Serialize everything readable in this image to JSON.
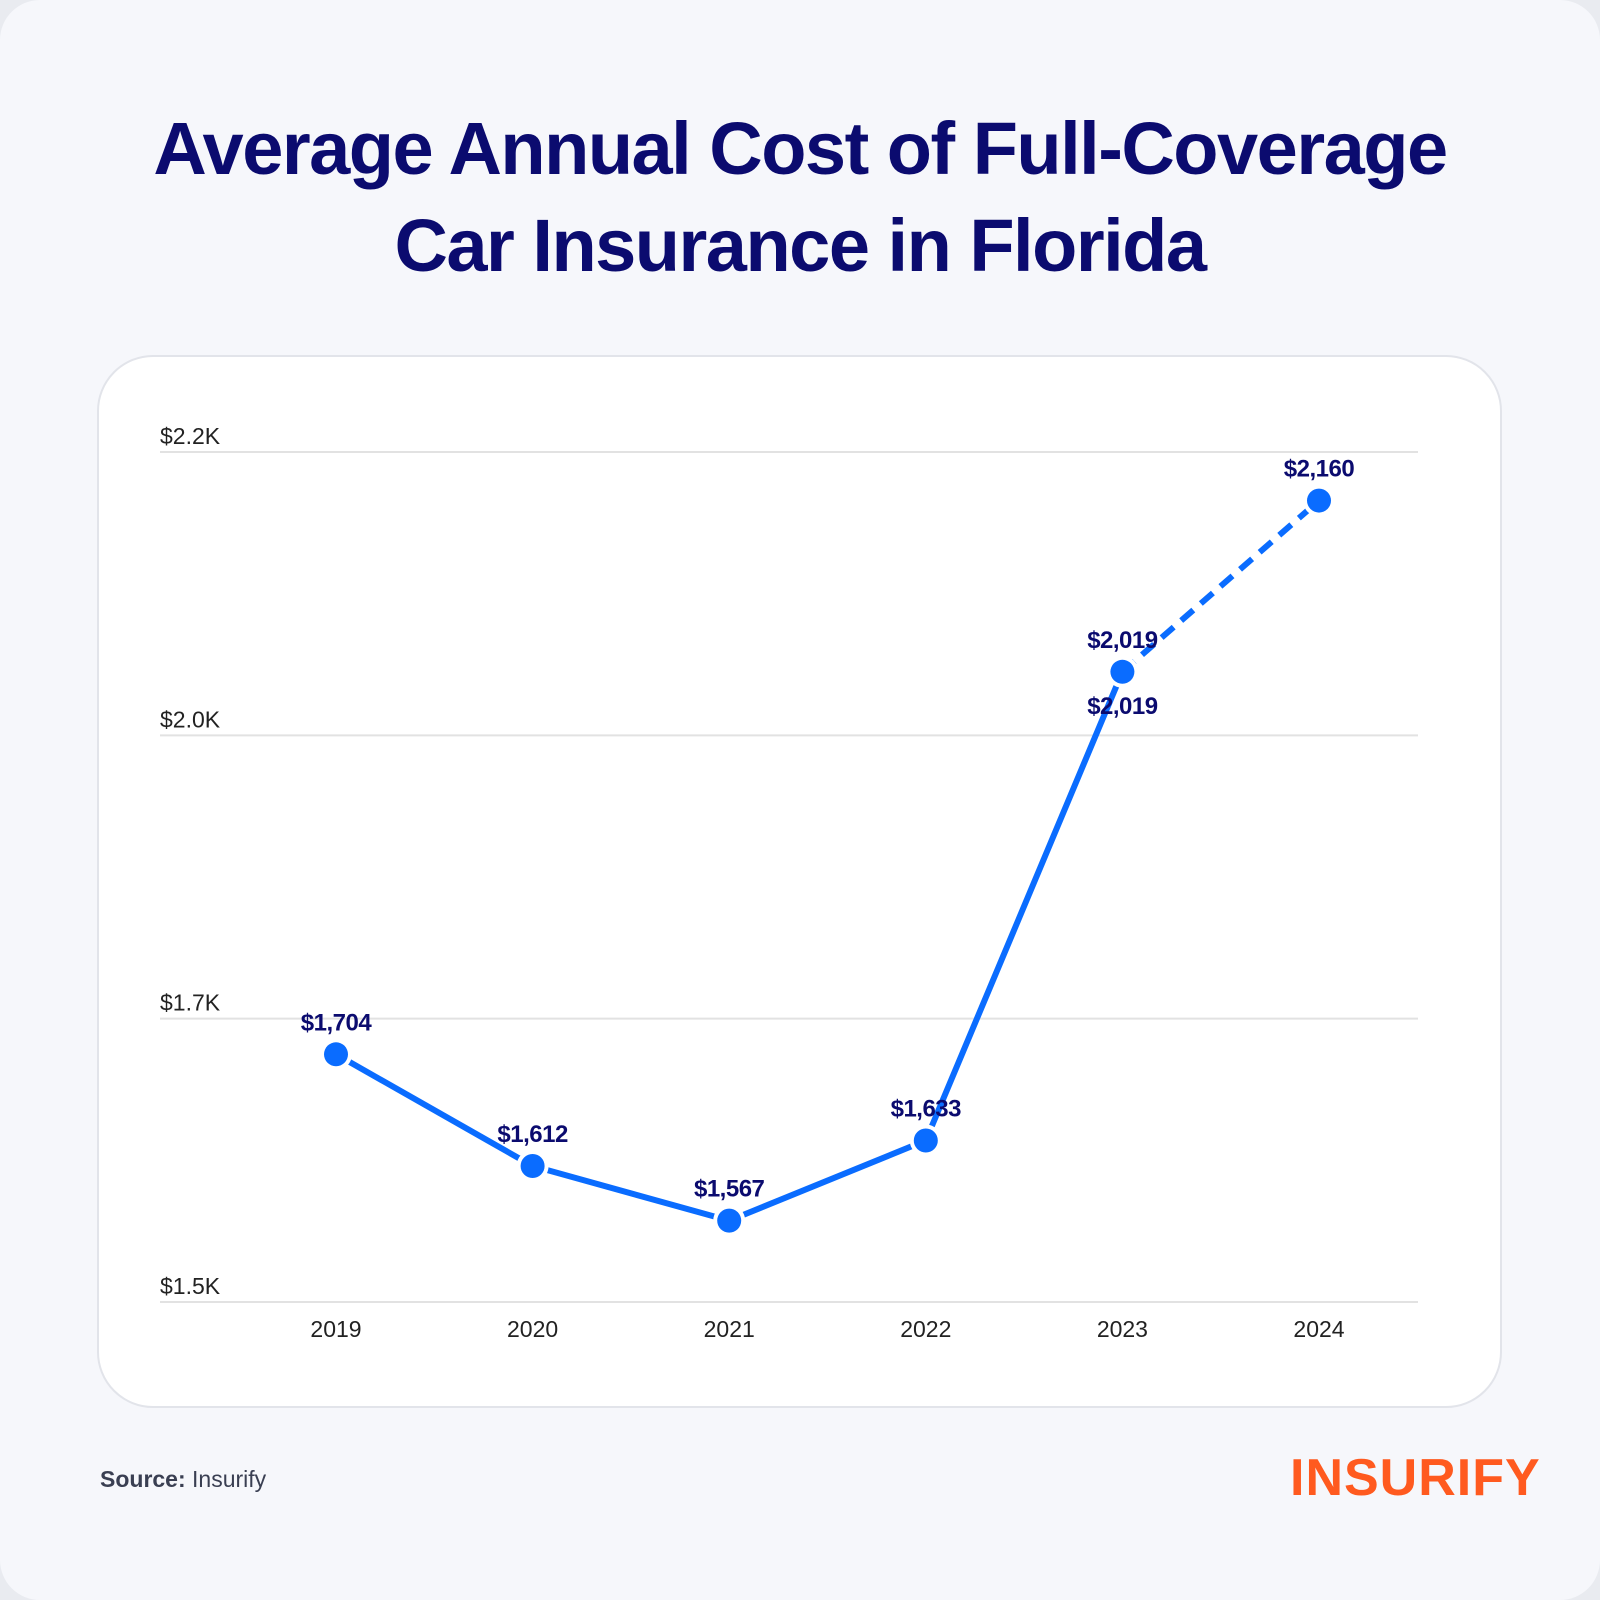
{
  "title_line1": "Average Annual Cost of Full-Coverage",
  "title_line2": "Car Insurance in Florida",
  "source_label": "Source:",
  "source_value": "Insurify",
  "logo_text": "INSURIFY",
  "colors": {
    "line": "#0a6cff",
    "label": "#0b0b6f",
    "logo": "#ff5a1f",
    "grid": "#e2e2e2"
  },
  "chart_data": {
    "type": "line",
    "categories": [
      "2019",
      "2020",
      "2021",
      "2022",
      "2023",
      "2024"
    ],
    "values": [
      1704,
      1612,
      1567,
      1633,
      2019,
      2160
    ],
    "data_labels": [
      "$1,704",
      "$1,612",
      "$1,567",
      "$1,633",
      "$2,019",
      "$2,160"
    ],
    "extra_label": {
      "category": "2023",
      "text": "$2,019"
    },
    "dashed_segment": [
      "2023",
      "2024"
    ],
    "y_ticks": [
      "$1.5K",
      "$1.7K",
      "$2.0K",
      "$2.2K"
    ],
    "ylim": [
      1500,
      2200
    ],
    "grid": true
  }
}
